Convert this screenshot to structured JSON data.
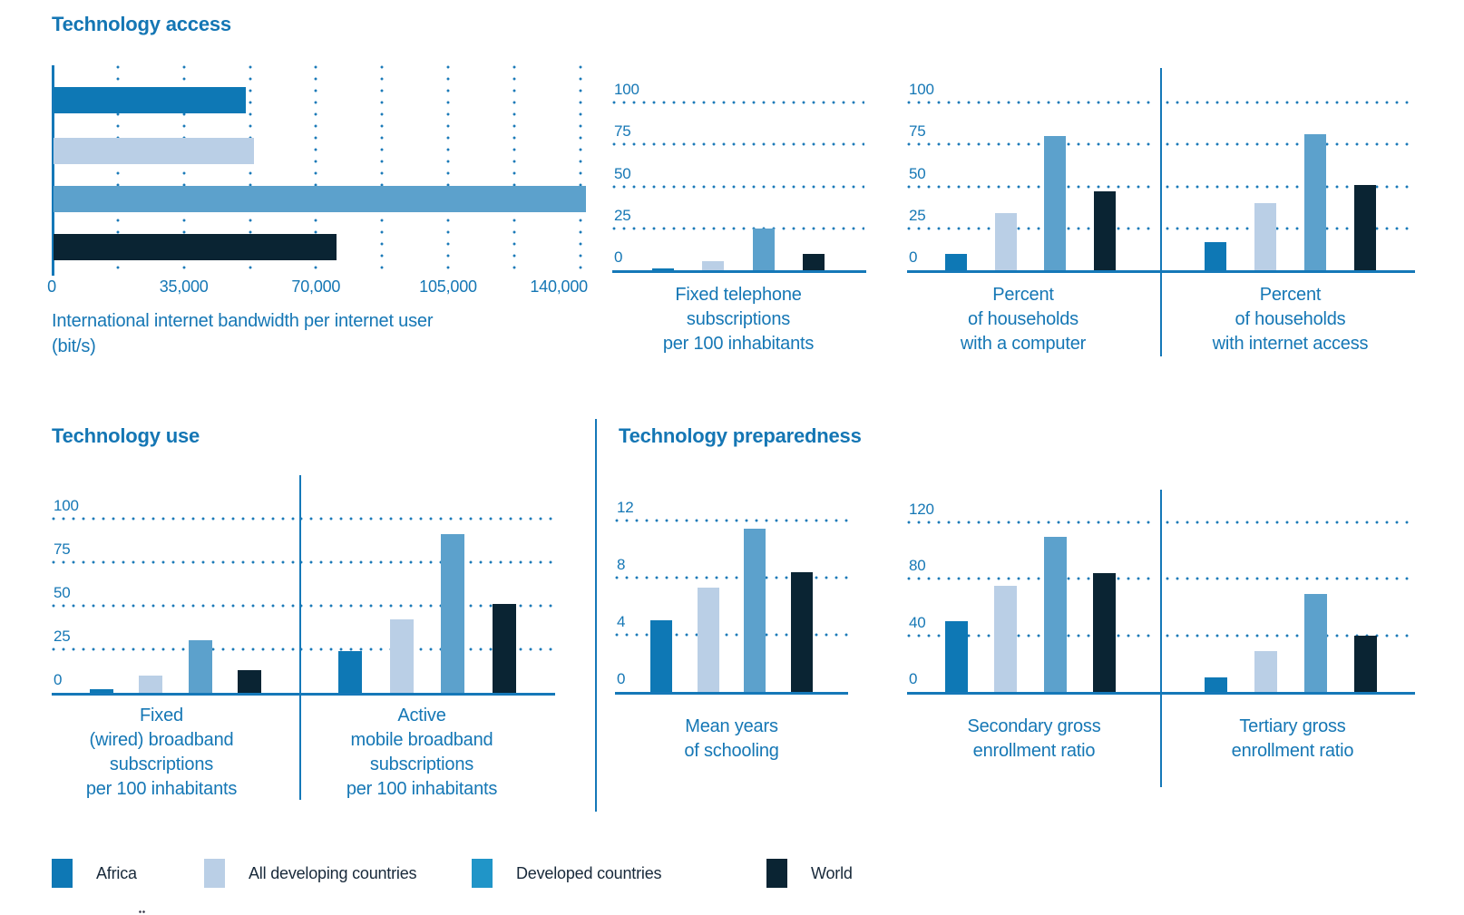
{
  "sections": {
    "access": {
      "title": "Technology access"
    },
    "use": {
      "title": "Technology use"
    },
    "preparedness": {
      "title": "Technology preparedness"
    }
  },
  "palette": {
    "africa": "#0E78B5",
    "all_developing": "#BACFE6",
    "developed_bar": "#5CA1CC",
    "developed_swatch": "#2095C8",
    "world": "#0A2433",
    "text_blue": "#1577B5",
    "line_blue": "#1578B8",
    "dot_blue": "#1B7AB8",
    "legend_text": "#18293A"
  },
  "legend": {
    "items": [
      {
        "label": "Africa",
        "color": "#0E78B5"
      },
      {
        "label": "All developing countries",
        "color": "#BACFE6"
      },
      {
        "label": "Developed countries",
        "color": "#2095C8"
      },
      {
        "label": "World",
        "color": "#0A2433"
      }
    ]
  },
  "chart_data": [
    {
      "id": "bandwidth",
      "type": "bar",
      "orientation": "horizontal",
      "section": "Technology access",
      "caption_lines": [
        "International internet bandwidth per internet user",
        "(bit/s)"
      ],
      "categories": [
        "Africa",
        "All developing countries",
        "Developed countries",
        "World"
      ],
      "values": [
        51000,
        53000,
        141000,
        75000
      ],
      "xticks": [
        0,
        35000,
        70000,
        105000,
        140000
      ],
      "xtick_labels": [
        "0",
        "35,000",
        "70,000",
        "105,000",
        "140,000"
      ],
      "xlim": [
        0,
        142000
      ],
      "grid": "dotted-vertical",
      "legend_position": "bottom"
    },
    {
      "id": "fixed-telephone",
      "type": "bar",
      "orientation": "vertical",
      "section": "Technology access",
      "caption_lines": [
        "Fixed telephone",
        "subscriptions",
        "per 100 inhabitants"
      ],
      "categories": [
        "Africa",
        "All developing countries",
        "Developed countries",
        "World"
      ],
      "values": [
        1,
        5.5,
        25,
        9.5
      ],
      "yticks": [
        0,
        25,
        50,
        75,
        100
      ],
      "ylim": [
        0,
        104
      ],
      "grid": "dotted-horizontal",
      "show_ylabels": true
    },
    {
      "id": "households-computer",
      "type": "bar",
      "orientation": "vertical",
      "section": "Technology access",
      "caption_lines": [
        "Percent",
        "of households",
        "with a computer"
      ],
      "categories": [
        "Africa",
        "All developing countries",
        "Developed countries",
        "World"
      ],
      "values": [
        10,
        34,
        80,
        47
      ],
      "yticks": [
        0,
        25,
        50,
        75,
        100
      ],
      "ylim": [
        0,
        104
      ],
      "grid": "dotted-horizontal",
      "show_ylabels": true
    },
    {
      "id": "households-internet",
      "type": "bar",
      "orientation": "vertical",
      "section": "Technology access",
      "caption_lines": [
        "Percent",
        "of households",
        "with internet access"
      ],
      "categories": [
        "Africa",
        "All developing countries",
        "Developed countries",
        "World"
      ],
      "values": [
        17,
        40,
        81,
        51
      ],
      "yticks": [
        0,
        25,
        50,
        75,
        100
      ],
      "ylim": [
        0,
        104
      ],
      "grid": "dotted-horizontal",
      "show_ylabels": false
    },
    {
      "id": "fixed-broadband",
      "type": "bar",
      "orientation": "vertical",
      "section": "Technology use",
      "caption_lines": [
        "Fixed",
        "(wired) broadband",
        "subscriptions",
        "per 100 inhabitants"
      ],
      "categories": [
        "Africa",
        "All developing countries",
        "Developed countries",
        "World"
      ],
      "values": [
        2,
        10,
        30,
        13
      ],
      "yticks": [
        0,
        25,
        50,
        75,
        100
      ],
      "ylim": [
        0,
        104
      ],
      "grid": "dotted-horizontal",
      "show_ylabels": true
    },
    {
      "id": "mobile-broadband",
      "type": "bar",
      "orientation": "vertical",
      "section": "Technology use",
      "caption_lines": [
        "Active",
        "mobile broadband",
        "subscriptions",
        "per 100 inhabitants"
      ],
      "categories": [
        "Africa",
        "All developing countries",
        "Developed countries",
        "World"
      ],
      "values": [
        24,
        42,
        91,
        51
      ],
      "yticks": [
        0,
        25,
        50,
        75,
        100
      ],
      "ylim": [
        0,
        104
      ],
      "grid": "dotted-horizontal",
      "show_ylabels": false
    },
    {
      "id": "mean-schooling",
      "type": "bar",
      "orientation": "vertical",
      "section": "Technology preparedness",
      "caption_lines": [
        "Mean years",
        "of schooling"
      ],
      "categories": [
        "Africa",
        "All developing countries",
        "Developed countries",
        "World"
      ],
      "values": [
        5,
        7.3,
        11.4,
        8.4
      ],
      "yticks": [
        0,
        4,
        8,
        12
      ],
      "ylim": [
        0,
        12.6
      ],
      "grid": "dotted-horizontal",
      "show_ylabels": true
    },
    {
      "id": "secondary-enrollment",
      "type": "bar",
      "orientation": "vertical",
      "section": "Technology preparedness",
      "caption_lines": [
        "Secondary gross",
        "enrollment ratio"
      ],
      "categories": [
        "Africa",
        "All developing countries",
        "Developed countries",
        "World"
      ],
      "values": [
        50,
        75,
        110,
        84
      ],
      "yticks": [
        0,
        40,
        80,
        120
      ],
      "ylim": [
        0,
        126
      ],
      "grid": "dotted-horizontal",
      "show_ylabels": true
    },
    {
      "id": "tertiary-enrollment",
      "type": "bar",
      "orientation": "vertical",
      "section": "Technology preparedness",
      "caption_lines": [
        "Tertiary gross",
        "enrollment ratio"
      ],
      "categories": [
        "Africa",
        "All developing countries",
        "Developed countries",
        "World"
      ],
      "values": [
        10,
        29,
        69,
        40
      ],
      "yticks": [
        0,
        40,
        80,
        120
      ],
      "ylim": [
        0,
        126
      ],
      "grid": "dotted-horizontal",
      "show_ylabels": false
    }
  ]
}
